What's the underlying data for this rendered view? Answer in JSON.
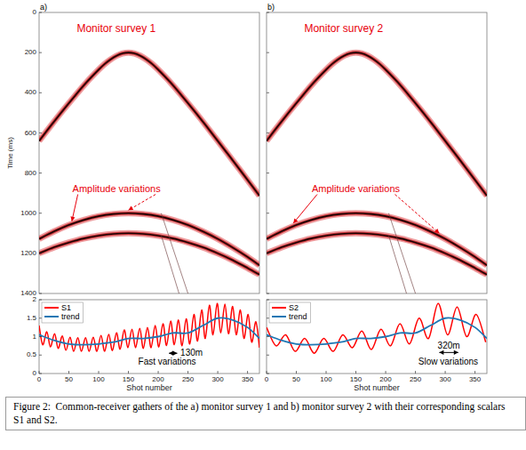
{
  "chart_data": [
    {
      "type": "gather",
      "panel": "a)",
      "title": "Monitor survey 1",
      "ylabel": "Time (ms)",
      "xlim": [
        0,
        370
      ],
      "ylim": [
        0,
        1400
      ],
      "yticks": [
        0,
        200,
        400,
        600,
        800,
        1000,
        1200,
        1400
      ],
      "tick_labels": "y",
      "annotations": [
        {
          "text": "Amplitude variations",
          "x": 130,
          "y": 880,
          "color": "#e8000b",
          "targets": [
            [
              55,
              1040
            ],
            [
              150,
              985
            ]
          ]
        }
      ],
      "series": [
        {
          "line_style": "wavelet",
          "x": [
            0,
            20,
            40,
            60,
            80,
            100,
            110,
            120,
            130,
            140,
            150,
            160,
            170,
            180,
            190,
            200,
            220,
            240,
            260,
            280,
            300,
            320,
            340,
            370
          ],
          "values": [
            640,
            563,
            488,
            416,
            347,
            285,
            257,
            234,
            216,
            204,
            200,
            204,
            216,
            234,
            257,
            285,
            347,
            416,
            488,
            563,
            640,
            717,
            795,
            913
          ]
        },
        {
          "line_style": "wavelet",
          "x": [
            0,
            25,
            50,
            75,
            100,
            125,
            150,
            175,
            200,
            225,
            250,
            275,
            300,
            325,
            350,
            370
          ],
          "values": [
            1128,
            1091,
            1059,
            1034,
            1015,
            1004,
            1000,
            1004,
            1015,
            1034,
            1059,
            1091,
            1128,
            1171,
            1218,
            1260
          ]
        },
        {
          "line_style": "wavelet",
          "x": [
            0,
            25,
            50,
            75,
            100,
            125,
            150,
            175,
            200,
            225,
            250,
            275,
            300,
            325,
            350,
            370
          ],
          "values": [
            1200,
            1170,
            1146,
            1126,
            1112,
            1103,
            1100,
            1103,
            1112,
            1126,
            1146,
            1170,
            1200,
            1234,
            1273,
            1306
          ]
        },
        {
          "line_style": "thin",
          "x": [
            205,
            250
          ],
          "values": [
            1000,
            1400
          ]
        },
        {
          "line_style": "thin",
          "x": [
            205,
            235
          ],
          "values": [
            1110,
            1400
          ]
        }
      ]
    },
    {
      "type": "gather",
      "panel": "b)",
      "title": "Monitor survey 2",
      "xlim": [
        0,
        370
      ],
      "ylim": [
        0,
        1400
      ],
      "yticks": [
        0,
        200,
        400,
        600,
        800,
        1000,
        1200,
        1400
      ],
      "tick_labels": false,
      "annotations": [
        {
          "text": "Amplitude variations",
          "x": 150,
          "y": 880,
          "color": "#e8000b",
          "targets": [
            [
              45,
              1050
            ],
            [
              290,
              1100
            ]
          ]
        }
      ],
      "series": [
        {
          "line_style": "wavelet",
          "x": [
            0,
            20,
            40,
            60,
            80,
            100,
            110,
            120,
            130,
            140,
            150,
            160,
            170,
            180,
            190,
            200,
            220,
            240,
            260,
            280,
            300,
            320,
            340,
            370
          ],
          "values": [
            640,
            563,
            488,
            416,
            347,
            285,
            257,
            234,
            216,
            204,
            200,
            204,
            216,
            234,
            257,
            285,
            347,
            416,
            488,
            563,
            640,
            717,
            795,
            913
          ]
        },
        {
          "line_style": "wavelet",
          "x": [
            0,
            25,
            50,
            75,
            100,
            125,
            150,
            175,
            200,
            225,
            250,
            275,
            300,
            325,
            350,
            370
          ],
          "values": [
            1128,
            1091,
            1059,
            1034,
            1015,
            1004,
            1000,
            1004,
            1015,
            1034,
            1059,
            1091,
            1128,
            1171,
            1218,
            1260
          ]
        },
        {
          "line_style": "wavelet",
          "x": [
            0,
            25,
            50,
            75,
            100,
            125,
            150,
            175,
            200,
            225,
            250,
            275,
            300,
            325,
            350,
            370
          ],
          "values": [
            1200,
            1170,
            1146,
            1126,
            1112,
            1103,
            1100,
            1103,
            1112,
            1126,
            1146,
            1170,
            1200,
            1234,
            1273,
            1306
          ]
        },
        {
          "line_style": "thin",
          "x": [
            205,
            250
          ],
          "values": [
            1000,
            1400
          ]
        },
        {
          "line_style": "thin",
          "x": [
            205,
            235
          ],
          "values": [
            1110,
            1400
          ]
        }
      ]
    },
    {
      "type": "line",
      "xlabel": "Shot number",
      "xlim": [
        0,
        370
      ],
      "ylim": [
        0,
        2
      ],
      "xticks": [
        0,
        50,
        100,
        150,
        200,
        250,
        300,
        350
      ],
      "yticks": [
        0,
        0.5,
        1,
        1.5,
        2
      ],
      "tick_labels": true,
      "legend": "upper left",
      "annotations": [
        {
          "text": "130m",
          "x": 256,
          "y": 0.55,
          "span": [
            218,
            232
          ],
          "span_y": 0.55
        },
        {
          "text": "Fast variations",
          "x": 215,
          "y": 0.3
        }
      ],
      "series": [
        {
          "name": "S1",
          "color": "#ff0000",
          "x": [
            0,
            6,
            13,
            19,
            26,
            32,
            39,
            45,
            52,
            58,
            65,
            71,
            78,
            84,
            91,
            97,
            104,
            110,
            117,
            123,
            130,
            136,
            143,
            149,
            156,
            162,
            169,
            175,
            182,
            188,
            195,
            201,
            208,
            214,
            221,
            227,
            234,
            240,
            247,
            253,
            260,
            266,
            273,
            279,
            286,
            292,
            299,
            305,
            312,
            318,
            325,
            331,
            338,
            344,
            351,
            357,
            364,
            370
          ],
          "values": [
            1.3,
            0.78,
            1.13,
            0.72,
            1.08,
            0.68,
            1.02,
            0.63,
            0.98,
            0.6,
            0.97,
            0.6,
            0.97,
            0.6,
            0.98,
            0.6,
            1.03,
            0.6,
            1.06,
            0.62,
            1.1,
            0.66,
            1.18,
            0.7,
            1.2,
            0.7,
            1.22,
            0.68,
            1.25,
            0.7,
            1.3,
            0.72,
            1.35,
            0.76,
            1.42,
            0.78,
            1.45,
            0.75,
            1.48,
            0.8,
            1.6,
            0.88,
            1.72,
            0.95,
            1.85,
            1.05,
            1.9,
            1.1,
            1.88,
            1.08,
            1.82,
            1.05,
            1.72,
            0.95,
            1.6,
            0.85,
            1.4,
            0.7
          ]
        },
        {
          "name": "trend",
          "color": "#1f77b4",
          "x": [
            0,
            25,
            50,
            75,
            100,
            125,
            150,
            175,
            200,
            225,
            250,
            275,
            300,
            325,
            350,
            370
          ],
          "values": [
            1.05,
            0.9,
            0.8,
            0.78,
            0.8,
            0.85,
            0.95,
            0.95,
            1.0,
            1.1,
            1.1,
            1.3,
            1.5,
            1.45,
            1.25,
            0.95
          ]
        }
      ]
    },
    {
      "type": "line",
      "xlabel": "Shot number",
      "xlim": [
        0,
        370
      ],
      "ylim": [
        0,
        2
      ],
      "xticks": [
        0,
        50,
        100,
        150,
        200,
        250,
        300,
        350
      ],
      "yticks": [
        0,
        0.5,
        1,
        1.5,
        2
      ],
      "tick_labels": "x",
      "legend": "upper left",
      "annotations": [
        {
          "text": "320m",
          "x": 306,
          "y": 0.75,
          "span": [
            290,
            322
          ],
          "span_y": 0.57
        },
        {
          "text": "Slow variations",
          "x": 305,
          "y": 0.3
        }
      ],
      "series": [
        {
          "name": "S2",
          "color": "#ff0000",
          "x": [
            0,
            16,
            32,
            48,
            64,
            80,
            96,
            112,
            128,
            144,
            160,
            176,
            192,
            208,
            224,
            240,
            256,
            272,
            288,
            304,
            320,
            336,
            352,
            368
          ],
          "values": [
            1.25,
            0.75,
            1.05,
            0.6,
            0.95,
            0.55,
            0.95,
            0.6,
            1.05,
            0.7,
            1.15,
            0.65,
            1.2,
            0.75,
            1.35,
            0.8,
            1.5,
            0.95,
            1.9,
            1.05,
            1.8,
            1.0,
            1.6,
            0.85
          ]
        },
        {
          "name": "trend",
          "color": "#1f77b4",
          "x": [
            0,
            25,
            50,
            75,
            100,
            125,
            150,
            175,
            200,
            225,
            250,
            275,
            300,
            325,
            350,
            370
          ],
          "values": [
            1.05,
            0.9,
            0.8,
            0.78,
            0.8,
            0.85,
            0.95,
            0.95,
            1.0,
            1.1,
            1.1,
            1.3,
            1.5,
            1.45,
            1.25,
            0.95
          ]
        }
      ]
    }
  ],
  "caption": "Figure 2:  Common-receiver gathers of the a) monitor survey 1 and b) monitor survey 2 with their corresponding scalars S1 and S2."
}
